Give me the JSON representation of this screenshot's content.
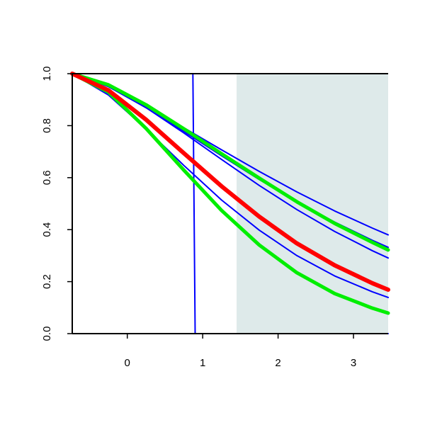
{
  "chart_data": {
    "type": "line",
    "x": [
      -0.73,
      -0.25,
      0.25,
      0.75,
      1.25,
      1.75,
      2.25,
      2.75,
      3.25,
      3.46
    ],
    "series": [
      {
        "color": "#0000ff",
        "width": 2,
        "values": [
          1,
          0.951,
          0.876,
          0.792,
          0.707,
          0.624,
          0.545,
          0.472,
          0.406,
          0.38
        ]
      },
      {
        "color": "#0000ff",
        "width": 2,
        "values": [
          1,
          0.95,
          0.869,
          0.778,
          0.684,
          0.593,
          0.507,
          0.429,
          0.359,
          0.332
        ]
      },
      {
        "color": "#0000ff",
        "width": 2,
        "values": [
          1,
          0.953,
          0.869,
          0.772,
          0.67,
          0.57,
          0.477,
          0.393,
          0.319,
          0.291
        ]
      },
      {
        "color": "#0000ff",
        "width": 2,
        "values": [
          1,
          0.918,
          0.787,
          0.647,
          0.514,
          0.398,
          0.3,
          0.222,
          0.161,
          0.139
        ]
      },
      {
        "color": "#0000ff",
        "width": 2,
        "x": [
          -0.73,
          0.87,
          0.9,
          3.46
        ],
        "values": [
          1,
          1,
          0,
          0
        ]
      },
      {
        "color": "#00ee00",
        "width": 5,
        "values": [
          1,
          0.957,
          0.88,
          0.788,
          0.692,
          0.598,
          0.507,
          0.424,
          0.351,
          0.322
        ]
      },
      {
        "color": "#00ee00",
        "width": 5,
        "values": [
          1,
          0.929,
          0.789,
          0.629,
          0.474,
          0.341,
          0.234,
          0.154,
          0.098,
          0.079
        ]
      },
      {
        "color": "#ff0000",
        "width": 6,
        "values": [
          1,
          0.936,
          0.823,
          0.694,
          0.567,
          0.45,
          0.347,
          0.263,
          0.194,
          0.169
        ]
      }
    ],
    "shaded_region": {
      "xmin": 1.45,
      "xmax": 3.46,
      "color": "#deeaea"
    },
    "xlim": [
      -0.73,
      3.46
    ],
    "ylim": [
      0,
      1
    ],
    "xticks": [
      0,
      1,
      2,
      3
    ],
    "yticks": [
      {
        "value": 0,
        "label": "0.0"
      },
      {
        "value": 0.2,
        "label": "0.2"
      },
      {
        "value": 0.4,
        "label": "0.4"
      },
      {
        "value": 0.6,
        "label": "0.6"
      },
      {
        "value": 0.8,
        "label": "0.8"
      },
      {
        "value": 1,
        "label": "1.0"
      }
    ]
  }
}
